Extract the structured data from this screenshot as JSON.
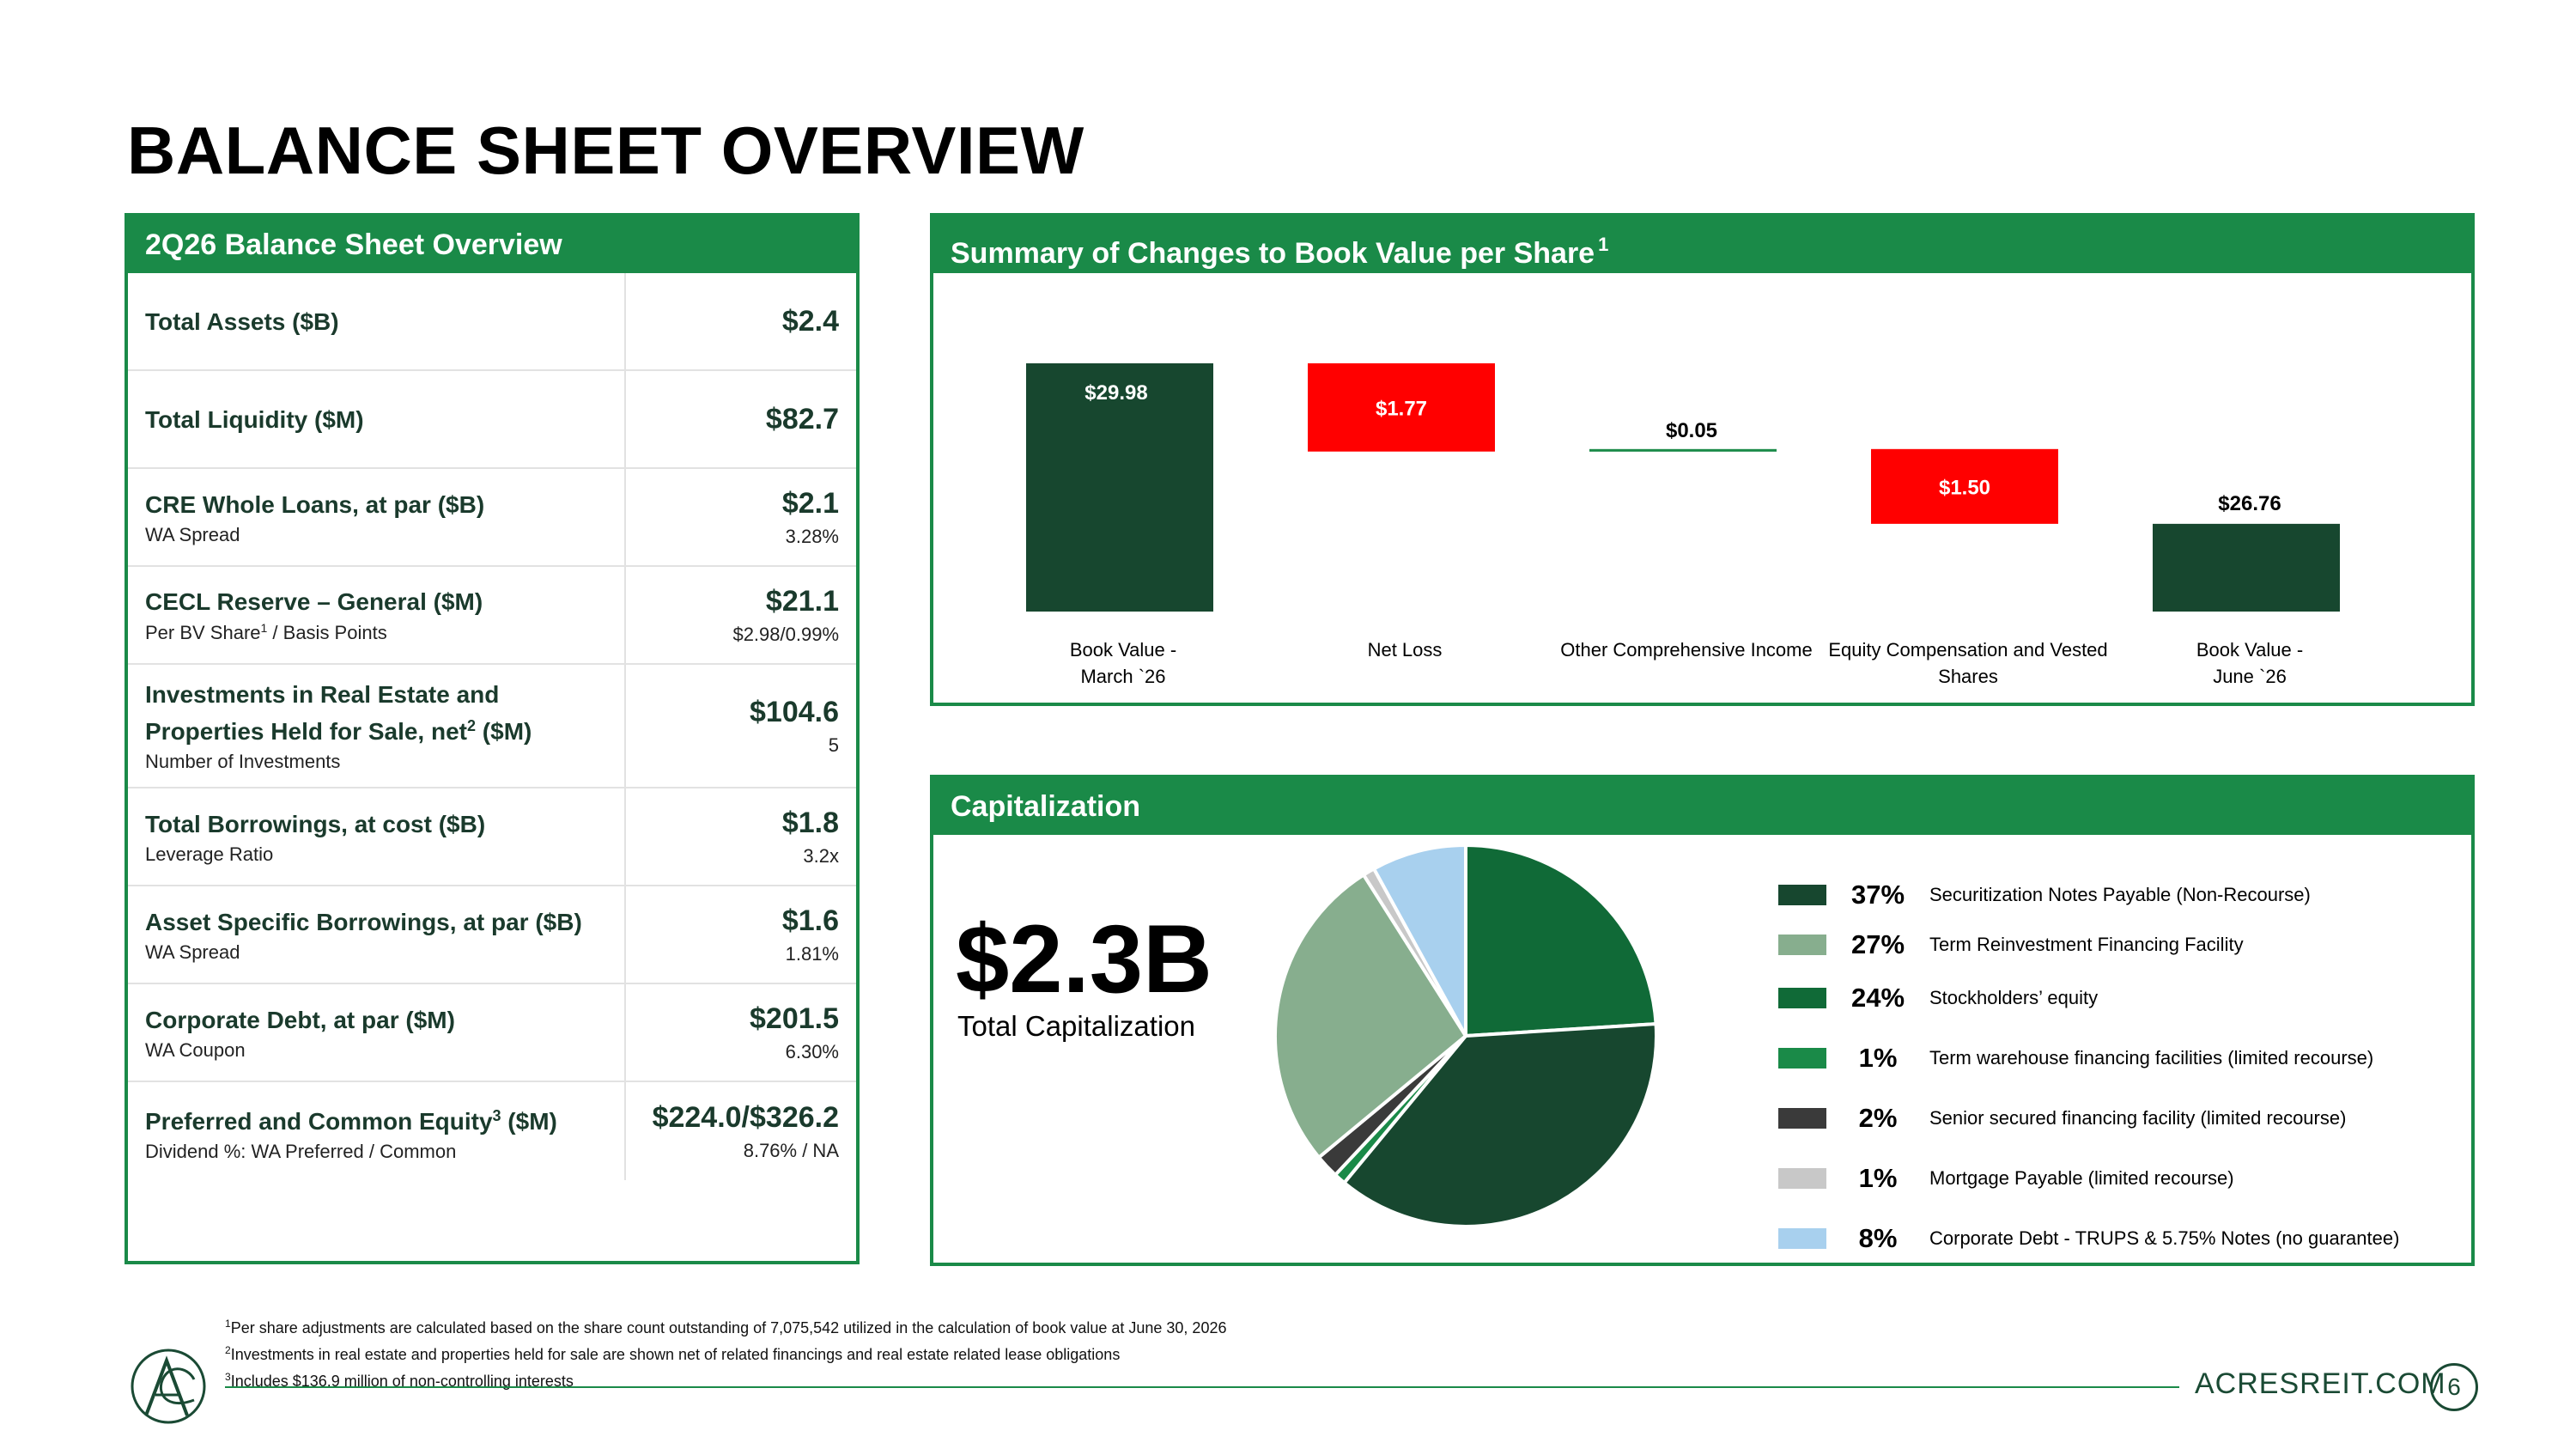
{
  "page": {
    "title": "BALANCE SHEET OVERVIEW",
    "site": "ACRESREIT.COM",
    "page_number": "6"
  },
  "overview": {
    "header": "2Q26 Balance Sheet Overview",
    "rows": [
      {
        "label": "Total Assets ($B)",
        "sub": "",
        "value": "$2.4",
        "subvalue": ""
      },
      {
        "label": "Total Liquidity ($M)",
        "sub": "",
        "value": "$82.7",
        "subvalue": ""
      },
      {
        "label": "CRE Whole Loans, at par ($B)",
        "sub": "WA Spread",
        "value": "$2.1",
        "subvalue": "3.28%"
      },
      {
        "label": "CECL Reserve – General ($M)",
        "sub": "Per BV Share",
        "sub_sup": "1",
        "sub_tail": " / Basis Points",
        "value": "$21.1",
        "subvalue": "$2.98/0.99%"
      },
      {
        "label": "Investments in Real Estate and Properties Held for Sale, net",
        "label_sup": "2",
        "label_tail": " ($M)",
        "sub": "Number of Investments",
        "value": "$104.6",
        "subvalue": "5"
      },
      {
        "label": "Total Borrowings, at cost ($B)",
        "sub": "Leverage Ratio",
        "value": "$1.8",
        "subvalue": "3.2x"
      },
      {
        "label": "Asset Specific Borrowings, at par ($B)",
        "sub": "WA Spread",
        "value": "$1.6",
        "subvalue": "1.81%"
      },
      {
        "label": "Corporate Debt, at par ($M)",
        "sub": "WA Coupon",
        "value": "$201.5",
        "subvalue": "6.30%"
      },
      {
        "label": "Preferred and Common Equity",
        "label_sup": "3",
        "label_tail": " ($M)",
        "sub": "Dividend %: WA Preferred / Common",
        "value": "$224.0/$326.2",
        "subvalue": "8.76% / NA"
      }
    ]
  },
  "bvps": {
    "header": "Summary of Changes to Book Value per Share",
    "header_sup": "1"
  },
  "capitalization": {
    "header": "Capitalization",
    "total": "$2.3B",
    "total_label": "Total Capitalization"
  },
  "footnotes": [
    {
      "sup": "1",
      "text": "Per share adjustments are calculated based on the share count outstanding of 7,075,542 utilized in the calculation of book value at June 30, 2026"
    },
    {
      "sup": "2",
      "text": "Investments in real estate and properties held for sale are shown net of related financings and real estate related lease obligations"
    },
    {
      "sup": "3",
      "text": "Includes $136.9 million of non-controlling interests"
    }
  ],
  "colors": {
    "brand_green": "#1a8a48",
    "dark_green": "#17472f",
    "negative_red": "#ff0000"
  },
  "chart_data": [
    {
      "type": "bar",
      "subtype": "waterfall",
      "title": "Summary of Changes to Book Value per Share",
      "categories": [
        "Book Value - March `26",
        "Net Loss",
        "Other Comprehensive Income",
        "Equity Compensation and Vested Shares",
        "Book Value - June `26"
      ],
      "values": [
        29.98,
        -1.77,
        0.05,
        -1.5,
        26.76
      ],
      "labels": [
        "$29.98",
        "$1.77",
        "$0.05",
        "$1.50",
        "$26.76"
      ],
      "kinds": [
        "total",
        "decrease",
        "increase",
        "decrease",
        "total"
      ],
      "colors": [
        "#17472f",
        "#ff0000",
        "#1a8a48",
        "#ff0000",
        "#17472f"
      ],
      "axis_min": 25.0,
      "grid": false
    },
    {
      "type": "pie",
      "title": "Capitalization",
      "slices": [
        {
          "label": "Securitization Notes Payable (Non-Recourse)",
          "value": 37,
          "pct_label": "37%",
          "color": "#17472f"
        },
        {
          "label": "Term Reinvestment Financing Facility",
          "value": 27,
          "pct_label": "27%",
          "color": "#87ae8e"
        },
        {
          "label": "Stockholders’ equity",
          "value": 24,
          "pct_label": "24%",
          "color": "#106a37"
        },
        {
          "label": "Term warehouse financing facilities (limited recourse)",
          "value": 1,
          "pct_label": "1%",
          "color": "#1a8a48"
        },
        {
          "label": "Senior secured financing facility (limited recourse)",
          "value": 2,
          "pct_label": "2%",
          "color": "#3a3a3a"
        },
        {
          "label": "Mortgage Payable (limited recourse)",
          "value": 1,
          "pct_label": "1%",
          "color": "#c8c8c8"
        },
        {
          "label": "Corporate Debt - TRUPS & 5.75% Notes (no guarantee)",
          "value": 8,
          "pct_label": "8%",
          "color": "#a8d0ee"
        }
      ],
      "pie_order": [
        2,
        0,
        3,
        4,
        1,
        5,
        6
      ],
      "legend_position": "right"
    }
  ]
}
